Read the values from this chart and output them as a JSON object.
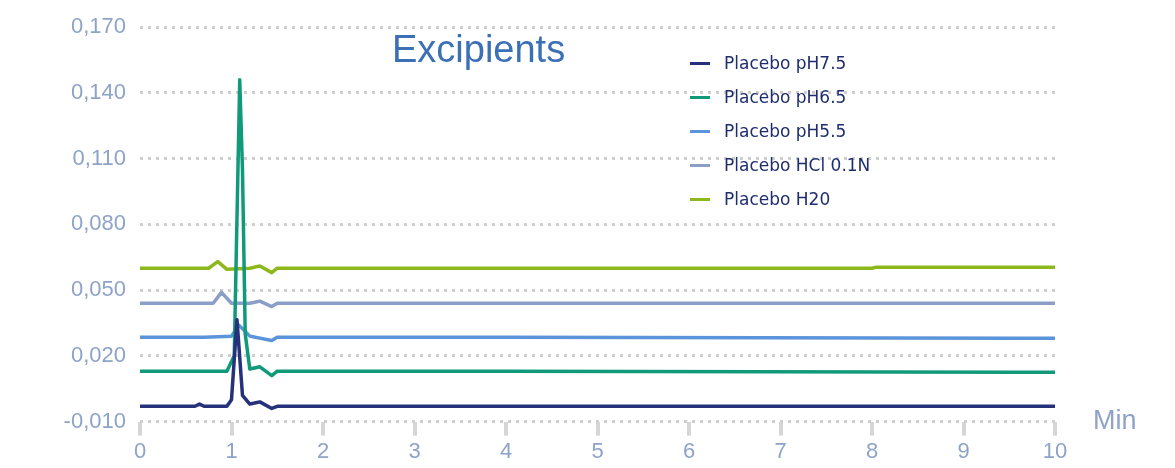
{
  "chart_data": {
    "type": "line",
    "title": "Excipients",
    "xlabel": "Min",
    "xlim": [
      0,
      10
    ],
    "xticks": [
      0,
      1,
      2,
      3,
      4,
      5,
      6,
      7,
      8,
      9,
      10
    ],
    "ylim": [
      -0.01,
      0.17
    ],
    "yticks": [
      {
        "value": -0.01,
        "label": "-0,010"
      },
      {
        "value": 0.02,
        "label": "0,020"
      },
      {
        "value": 0.05,
        "label": "0,050"
      },
      {
        "value": 0.08,
        "label": "0,080"
      },
      {
        "value": 0.11,
        "label": "0,110"
      },
      {
        "value": 0.14,
        "label": "0,140"
      },
      {
        "value": 0.17,
        "label": "0,170"
      }
    ],
    "grid": "y",
    "legend": "top right",
    "marker": "none",
    "line_style": "solid",
    "series": [
      {
        "name": "Placebo pH7.5",
        "color": "#25317a",
        "x": [
          0,
          0.6,
          0.65,
          0.7,
          0.95,
          1.0,
          1.06,
          1.12,
          1.2,
          1.31,
          1.44,
          1.5,
          10
        ],
        "values": [
          -0.003,
          -0.003,
          -0.002,
          -0.003,
          -0.003,
          0.0,
          0.0365,
          0.002,
          -0.002,
          -0.001,
          -0.004,
          -0.003,
          -0.003
        ]
      },
      {
        "name": "Placebo pH6.5",
        "color": "#109a7a",
        "x": [
          0,
          0.95,
          1.03,
          1.09,
          1.12,
          1.15,
          1.2,
          1.31,
          1.44,
          1.5,
          3.3,
          10
        ],
        "values": [
          0.013,
          0.013,
          0.02,
          0.146,
          0.105,
          0.03,
          0.014,
          0.015,
          0.011,
          0.013,
          0.013,
          0.0125
        ]
      },
      {
        "name": "Placebo pH5.5",
        "color": "#5b94da",
        "x": [
          0,
          0.7,
          1.0,
          1.08,
          1.13,
          1.2,
          1.44,
          1.5,
          3.3,
          10
        ],
        "values": [
          0.0285,
          0.0285,
          0.029,
          0.034,
          0.032,
          0.029,
          0.027,
          0.0285,
          0.0285,
          0.028
        ]
      },
      {
        "name": "Placebo HCl 0.1N",
        "color": "#8a9ec8",
        "x": [
          0,
          0.8,
          0.89,
          1.0,
          1.2,
          1.31,
          1.44,
          1.5,
          10
        ],
        "values": [
          0.044,
          0.044,
          0.049,
          0.044,
          0.044,
          0.045,
          0.0425,
          0.044,
          0.044
        ]
      },
      {
        "name": "Placebo H20",
        "color": "#8db81c",
        "x": [
          0,
          0.75,
          0.85,
          0.95,
          1.2,
          1.31,
          1.44,
          1.5,
          8,
          8.05,
          10
        ],
        "values": [
          0.06,
          0.06,
          0.063,
          0.0595,
          0.06,
          0.061,
          0.058,
          0.06,
          0.06,
          0.0605,
          0.0605
        ]
      }
    ]
  }
}
